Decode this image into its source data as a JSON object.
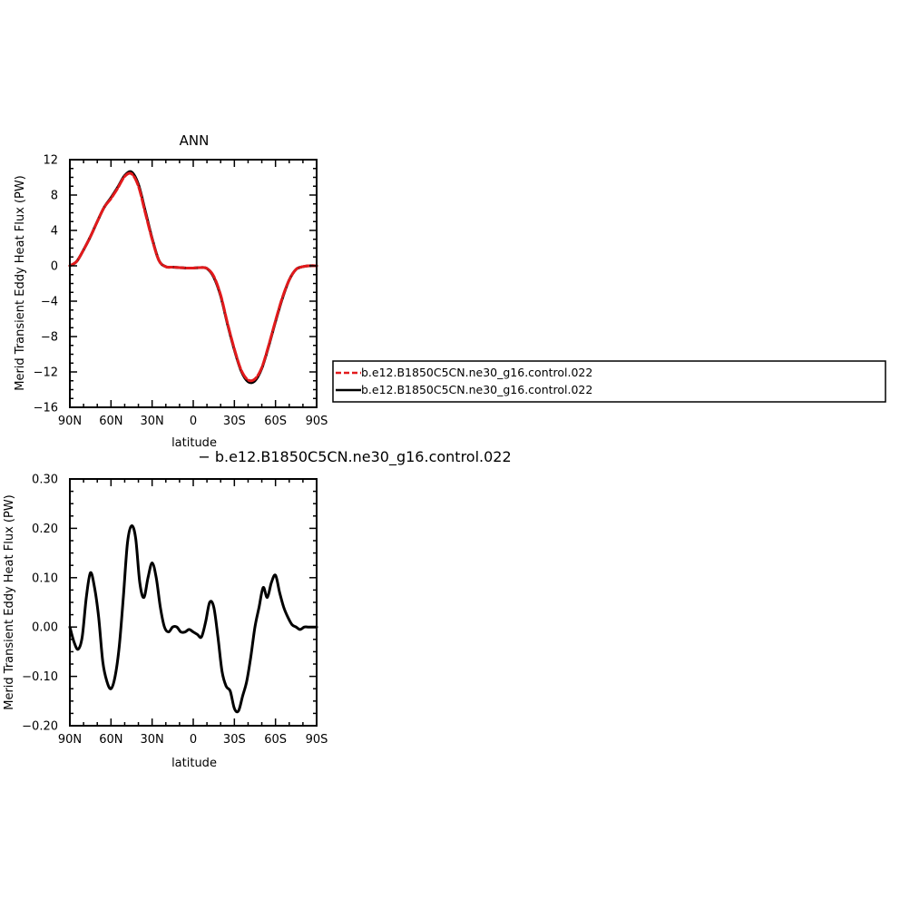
{
  "chart_data": [
    {
      "type": "line",
      "title": "ANN",
      "xlabel": "latitude",
      "ylabel": "Merid Transient Eddy Heat Flux (PW)",
      "x_tick_labels": [
        "90N",
        "60N",
        "30N",
        "0",
        "30S",
        "60S",
        "90S"
      ],
      "x_ticks": [
        90,
        60,
        30,
        0,
        -30,
        -60,
        -90
      ],
      "xlim": [
        90,
        -90
      ],
      "y_ticks": [
        12,
        8,
        4,
        0,
        -4,
        -8,
        -12,
        -16
      ],
      "y_tick_labels": [
        "12",
        "8",
        "4",
        "0",
        "−4",
        "−8",
        "−12",
        "−16"
      ],
      "ylim": [
        -16,
        12
      ],
      "grid": false,
      "legend_position": "right",
      "series": [
        {
          "name": "b.e12.B1850C5CN.ne30_g16.control.022",
          "color": "#e31a1c",
          "dash": "dashed",
          "x": [
            90,
            85,
            80,
            75,
            70,
            65,
            60,
            55,
            50,
            45,
            40,
            35,
            30,
            25,
            20,
            15,
            10,
            5,
            0,
            -5,
            -10,
            -15,
            -20,
            -25,
            -30,
            -35,
            -40,
            -45,
            -50,
            -55,
            -60,
            -65,
            -70,
            -75,
            -80,
            -85,
            -90
          ],
          "y": [
            0.0,
            0.5,
            1.8,
            3.3,
            5.0,
            6.6,
            7.6,
            8.8,
            10.1,
            10.4,
            9.0,
            6.0,
            3.0,
            0.6,
            -0.1,
            -0.15,
            -0.2,
            -0.25,
            -0.25,
            -0.2,
            -0.3,
            -1.2,
            -3.3,
            -6.5,
            -9.4,
            -11.8,
            -12.9,
            -12.8,
            -11.5,
            -9.0,
            -6.2,
            -3.6,
            -1.6,
            -0.4,
            -0.1,
            0.0,
            0.0
          ]
        },
        {
          "name": "b.e12.B1850C5CN.ne30_g16.control.022",
          "color": "#000000",
          "dash": "solid",
          "x": [
            90,
            85,
            80,
            75,
            70,
            65,
            60,
            55,
            50,
            45,
            40,
            35,
            30,
            25,
            20,
            15,
            10,
            5,
            0,
            -5,
            -10,
            -15,
            -20,
            -25,
            -30,
            -35,
            -40,
            -45,
            -50,
            -55,
            -60,
            -65,
            -70,
            -75,
            -80,
            -85,
            -90
          ],
          "y": [
            0.0,
            0.5,
            1.8,
            3.3,
            5.0,
            6.6,
            7.7,
            8.9,
            10.2,
            10.6,
            9.2,
            6.2,
            3.1,
            0.6,
            -0.1,
            -0.15,
            -0.2,
            -0.25,
            -0.25,
            -0.2,
            -0.3,
            -1.3,
            -3.4,
            -6.6,
            -9.5,
            -11.9,
            -13.1,
            -13.0,
            -11.6,
            -9.1,
            -6.3,
            -3.7,
            -1.6,
            -0.4,
            -0.1,
            0.0,
            0.0
          ]
        }
      ]
    },
    {
      "type": "line",
      "title": "− b.e12.B1850C5CN.ne30_g16.control.022",
      "xlabel": "latitude",
      "ylabel": "Merid Transient Eddy Heat Flux (PW)",
      "x_tick_labels": [
        "90N",
        "60N",
        "30N",
        "0",
        "30S",
        "60S",
        "90S"
      ],
      "x_ticks": [
        90,
        60,
        30,
        0,
        -30,
        -60,
        -90
      ],
      "xlim": [
        90,
        -90
      ],
      "y_ticks": [
        0.3,
        0.2,
        0.1,
        0.0,
        -0.1,
        -0.2
      ],
      "y_tick_labels": [
        "0.30",
        "0.20",
        "0.10",
        "0.00",
        "−0.10",
        "−0.20"
      ],
      "ylim": [
        -0.2,
        0.3
      ],
      "grid": false,
      "series": [
        {
          "color": "#000000",
          "dash": "solid",
          "x": [
            90,
            87,
            84,
            81,
            78,
            75,
            72,
            69,
            66,
            63,
            60,
            57,
            54,
            51,
            48,
            45,
            42,
            39,
            36,
            33,
            30,
            27,
            24,
            21,
            18,
            15,
            12,
            9,
            6,
            3,
            0,
            -3,
            -6,
            -9,
            -12,
            -15,
            -18,
            -21,
            -24,
            -27,
            -30,
            -33,
            -36,
            -39,
            -42,
            -45,
            -48,
            -51,
            -54,
            -57,
            -60,
            -63,
            -66,
            -69,
            -72,
            -75,
            -78,
            -81,
            -84,
            -87,
            -90
          ],
          "y": [
            0.0,
            -0.03,
            -0.045,
            -0.02,
            0.06,
            0.11,
            0.08,
            0.02,
            -0.07,
            -0.11,
            -0.125,
            -0.1,
            -0.04,
            0.06,
            0.17,
            0.205,
            0.18,
            0.09,
            0.06,
            0.1,
            0.13,
            0.1,
            0.04,
            0.0,
            -0.01,
            0.0,
            0.0,
            -0.01,
            -0.01,
            -0.005,
            -0.01,
            -0.015,
            -0.02,
            0.01,
            0.05,
            0.04,
            -0.02,
            -0.09,
            -0.12,
            -0.13,
            -0.165,
            -0.17,
            -0.14,
            -0.11,
            -0.06,
            0.0,
            0.04,
            0.08,
            0.06,
            0.09,
            0.105,
            0.07,
            0.04,
            0.02,
            0.005,
            0.0,
            -0.005,
            0.0,
            0.0,
            0.0,
            0.0
          ]
        }
      ]
    }
  ]
}
